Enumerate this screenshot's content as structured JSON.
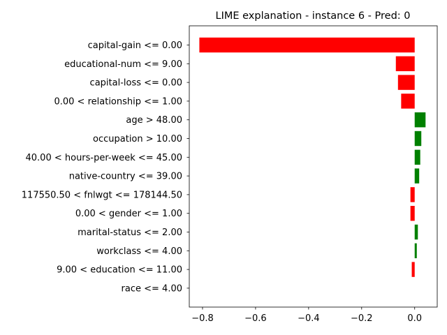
{
  "chart_data": {
    "type": "bar",
    "orientation": "horizontal",
    "title": "LIME explanation - instance 6 - Pred: 0",
    "xlabel": "",
    "ylabel": "",
    "xlim": [
      -0.85,
      0.085
    ],
    "xticks": [
      -0.8,
      -0.6,
      -0.4,
      -0.2,
      0.0
    ],
    "xtick_labels": [
      "−0.8",
      "−0.6",
      "−0.4",
      "−0.2",
      "0.0"
    ],
    "grid": false,
    "positive_color": "#008000",
    "negative_color": "#ff0000",
    "categories": [
      "capital-gain <= 0.00",
      "educational-num <= 9.00",
      "capital-loss <= 0.00",
      "0.00 < relationship <= 1.00",
      "age > 48.00",
      "occupation > 10.00",
      "40.00 < hours-per-week <= 45.00",
      "native-country <= 39.00",
      "117550.50 < fnlwgt <= 178144.50",
      "0.00 < gender <= 1.00",
      "marital-status <= 2.00",
      "workclass <= 4.00",
      "9.00 < education <= 11.00",
      "race <= 4.00"
    ],
    "values": [
      -0.812,
      -0.071,
      -0.063,
      -0.051,
      0.041,
      0.025,
      0.021,
      0.017,
      -0.016,
      -0.016,
      0.012,
      0.008,
      -0.011,
      0.0
    ]
  }
}
